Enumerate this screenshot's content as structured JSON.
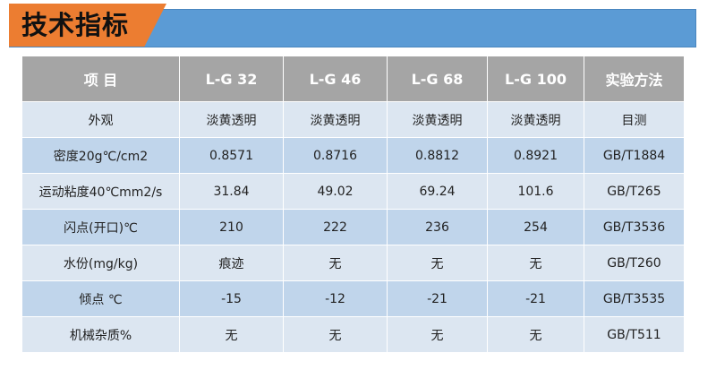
{
  "banner": {
    "title": "技术指标",
    "colors": {
      "orange": "#ec7d31",
      "blue": "#5b9bd5"
    }
  },
  "table": {
    "headers": [
      "项 目",
      "L-G 32",
      "L-G 46",
      "L-G 68",
      "L-G 100",
      "实验方法"
    ],
    "rows": [
      [
        "外观",
        "淡黄透明",
        "淡黄透明",
        "淡黄透明",
        "淡黄透明",
        "目测"
      ],
      [
        "密度20g℃/cm2",
        "0.8571",
        "0.8716",
        "0.8812",
        "0.8921",
        "GB/T1884"
      ],
      [
        "运动粘度40℃mm2/s",
        "31.84",
        "49.02",
        "69.24",
        "101.6",
        "GB/T265"
      ],
      [
        "闪点(开口)℃",
        "210",
        "222",
        "236",
        "254",
        "GB/T3536"
      ],
      [
        "水份(mg/kg)",
        "痕迹",
        "无",
        "无",
        "无",
        "GB/T260"
      ],
      [
        "倾点 ℃",
        "-15",
        "-12",
        "-21",
        "-21",
        "GB/T3535"
      ],
      [
        "机械杂质%",
        "无",
        "无",
        "无",
        "无",
        "GB/T511"
      ]
    ]
  }
}
